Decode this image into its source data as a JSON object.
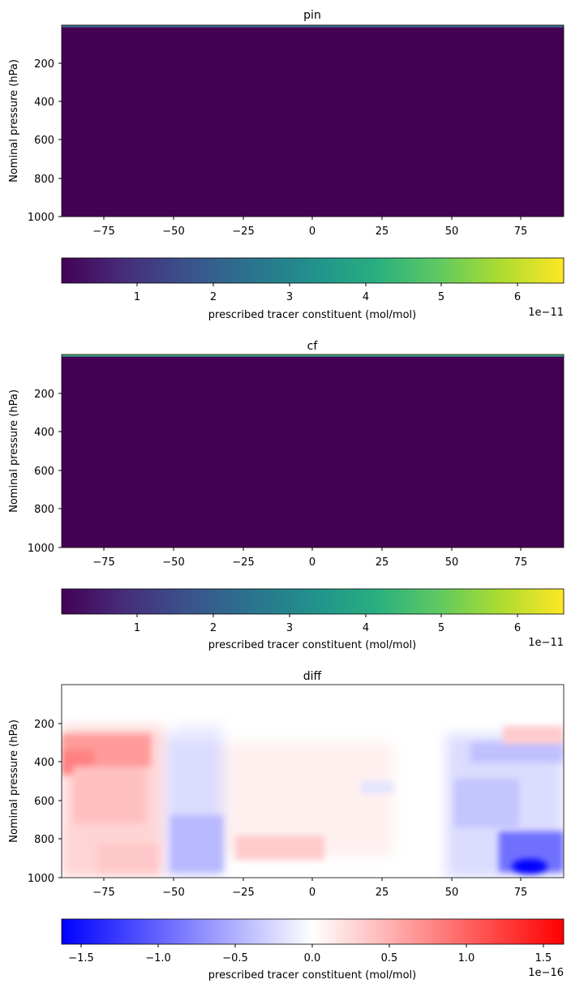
{
  "chart_data": [
    {
      "type": "heatmap",
      "title": "pin",
      "ylabel": "Nominal pressure (hPa)",
      "xlabel": "",
      "xlim": [
        -90,
        90
      ],
      "ylim": [
        1000,
        0
      ],
      "x_ticks": [
        -75,
        -50,
        -25,
        0,
        25,
        50,
        75
      ],
      "y_ticks": [
        200,
        400,
        600,
        800,
        1000
      ],
      "colormap": "viridis",
      "field": "near-zero everywhere except a thin high-value layer at the model top",
      "colorbar": {
        "label": "prescribed tracer constituent (mol/mol)",
        "range": [
          0,
          6.6
        ],
        "ticks": [
          1,
          2,
          3,
          4,
          5,
          6
        ],
        "offset_text": "1e−11"
      }
    },
    {
      "type": "heatmap",
      "title": "cf",
      "ylabel": "Nominal pressure (hPa)",
      "xlabel": "",
      "xlim": [
        -90,
        90
      ],
      "ylim": [
        1000,
        0
      ],
      "x_ticks": [
        -75,
        -50,
        -25,
        0,
        25,
        50,
        75
      ],
      "y_ticks": [
        200,
        400,
        600,
        800,
        1000
      ],
      "colormap": "viridis",
      "field": "near-zero everywhere except a thin high-value layer at the model top",
      "colorbar": {
        "label": "prescribed tracer constituent (mol/mol)",
        "range": [
          0,
          6.6
        ],
        "ticks": [
          1,
          2,
          3,
          4,
          5,
          6
        ],
        "offset_text": "1e−11"
      }
    },
    {
      "type": "heatmap",
      "title": "diff",
      "ylabel": "Nominal pressure (hPa)",
      "xlabel": "",
      "xlim": [
        -90,
        90
      ],
      "ylim": [
        1000,
        0
      ],
      "x_ticks": [
        -75,
        -50,
        -25,
        0,
        25,
        50,
        75
      ],
      "y_ticks": [
        200,
        400,
        600,
        800,
        1000
      ],
      "colormap": "bwr",
      "field": "zero above ~200 hPa; positive over southern high latitudes and mid-latitudes, negative around 50S and north of 50N, strongest negative near 80N 950 hPa",
      "colorbar": {
        "label": "prescribed tracer constituent (mol/mol)",
        "range": [
          -1.62,
          1.62
        ],
        "ticks": [
          -1.5,
          -1.0,
          -0.5,
          0.0,
          0.5,
          1.0,
          1.5
        ],
        "tick_labels": [
          "−1.5",
          "−1.0",
          "−0.5",
          "0.0",
          "0.5",
          "1.0",
          "1.5"
        ],
        "offset_text": "1e−16"
      }
    }
  ],
  "colors": {
    "viridis_low": "#440154",
    "viridis_mid": "#21918c",
    "viridis_high": "#fde725",
    "bwr_low": "#0000ff",
    "bwr_mid": "#ffffff",
    "bwr_high": "#ff0000"
  }
}
